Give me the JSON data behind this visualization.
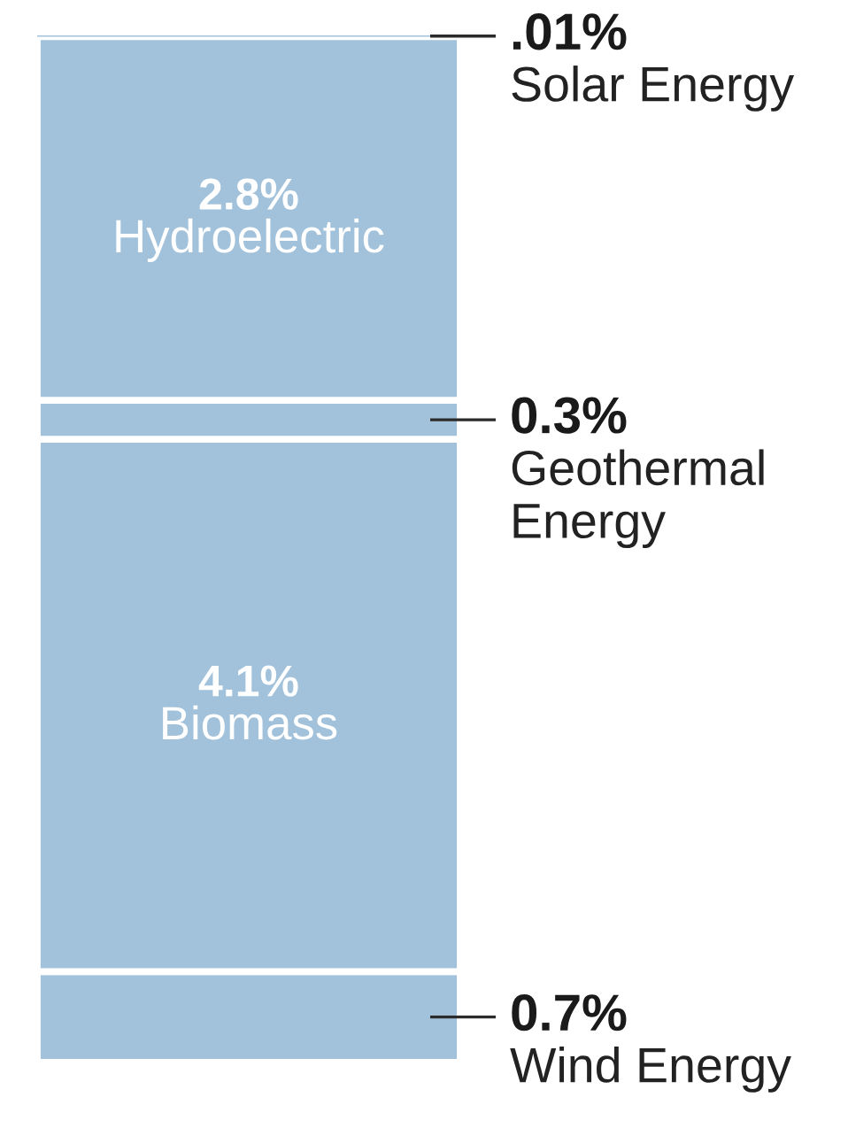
{
  "chart_data": {
    "type": "bar",
    "stacked": true,
    "categories": [
      null
    ],
    "series": [
      {
        "name": "Wind Energy",
        "color": "#a2c2db",
        "values": [
          0.7
        ],
        "value_labels": [
          "0.7%"
        ]
      },
      {
        "name": "Biomass",
        "color": "#a2c2db",
        "values": [
          4.1
        ],
        "value_labels": [
          "4.1%"
        ]
      },
      {
        "name": "Geothermal Energy",
        "color": "#a2c2db",
        "values": [
          0.3
        ],
        "value_labels": [
          "0.3%"
        ]
      },
      {
        "name": "Hydroelectric",
        "color": "#a2c2db",
        "values": [
          2.8
        ],
        "value_labels": [
          "2.8%"
        ]
      },
      {
        "name": "Solar Energy",
        "color": "#a2c2db",
        "values": [
          0.01
        ],
        "value_labels": [
          ".01%"
        ]
      }
    ]
  }
}
